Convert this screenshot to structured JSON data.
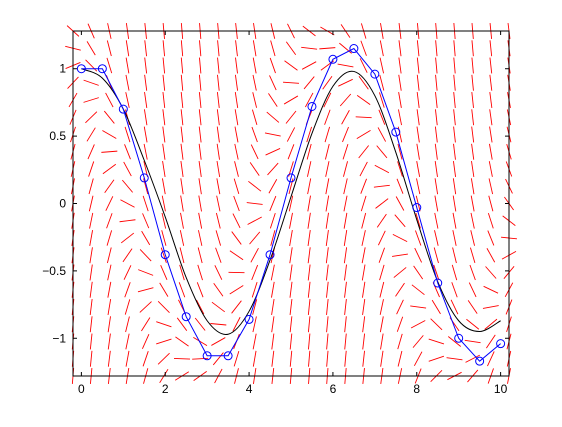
{
  "chart_data": {
    "type": "line",
    "title": "",
    "xlabel": "",
    "ylabel": "",
    "xlim": [
      -0.2,
      10.2
    ],
    "ylim": [
      -1.28,
      1.28
    ],
    "xticks": [
      0,
      2,
      4,
      6,
      8,
      10
    ],
    "xtick_labels": [
      "0",
      "2",
      "4",
      "6",
      "8",
      "10"
    ],
    "yticks": [
      -1,
      -0.5,
      0,
      0.5,
      1
    ],
    "ytick_labels": [
      "−1",
      "−0.5",
      "0",
      "0.5",
      "1"
    ],
    "grid": false,
    "legend": "none",
    "direction_field": {
      "color": "#ff0000",
      "description": "short slope segments over the plot area",
      "x_range": [
        -0.2,
        10.2
      ],
      "y_range": [
        -1.28,
        1.28
      ],
      "nx": 25,
      "ny": 21
    },
    "series": [
      {
        "style": "black-line",
        "color": "#000000",
        "marker": "none",
        "x": [
          0,
          0.5,
          1,
          1.5,
          2,
          2.5,
          3,
          3.5,
          4,
          4.5,
          5,
          5.5,
          6,
          6.5,
          7,
          7.5,
          8,
          8.5,
          9,
          9.5,
          10
        ],
        "y": [
          1.0,
          0.93,
          0.7,
          0.32,
          -0.1,
          -0.55,
          -0.87,
          -0.97,
          -0.8,
          -0.42,
          0.05,
          0.52,
          0.87,
          0.98,
          0.8,
          0.38,
          -0.12,
          -0.58,
          -0.87,
          -0.95,
          -0.87
        ]
      },
      {
        "style": "blue-circles",
        "color": "#0000ff",
        "marker": "circle",
        "x": [
          0,
          0.5,
          1,
          1.5,
          2,
          2.5,
          3,
          3.5,
          4,
          4.5,
          5,
          5.5,
          6,
          6.5,
          7,
          7.5,
          8,
          8.5,
          9,
          9.5,
          10
        ],
        "y": [
          1.0,
          1.0,
          0.7,
          0.19,
          -0.38,
          -0.84,
          -1.13,
          -1.13,
          -0.86,
          -0.38,
          0.19,
          0.72,
          1.07,
          1.15,
          0.96,
          0.53,
          -0.03,
          -0.59,
          -1.0,
          -1.17,
          -1.04
        ]
      }
    ]
  }
}
